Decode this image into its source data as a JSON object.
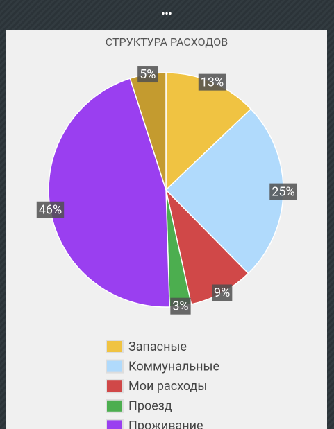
{
  "header": {
    "menu": "•••"
  },
  "chart_data": {
    "type": "pie",
    "title": "СТРУКТУРА РАСХОДОВ",
    "categories": [
      "Запасные",
      "Коммунальные",
      "Мои расходы",
      "Проезд",
      "Проживание",
      null
    ],
    "values": [
      13,
      25,
      9,
      3,
      46,
      5
    ],
    "value_labels": [
      "13%",
      "25%",
      "9%",
      "3%",
      "46%",
      "5%"
    ],
    "colors": [
      "#f0c342",
      "#b0dafc",
      "#d04848",
      "#4cae4f",
      "#9a3ff0",
      "#c49b2f"
    ],
    "legend": "bottom"
  }
}
